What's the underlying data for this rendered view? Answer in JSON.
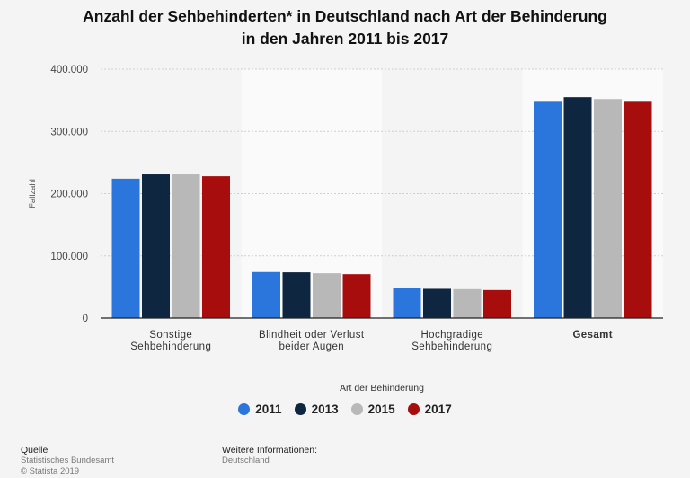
{
  "title_line1": "Anzahl der Sehbehinderten* in Deutschland nach Art der Behinderung",
  "title_line2": "in den Jahren 2011 bis 2017",
  "chart_data": {
    "type": "bar",
    "title": "Anzahl der Sehbehinderten* in Deutschland nach Art der Behinderung in den Jahren 2011 bis 2017",
    "xlabel": "Art der Behinderung",
    "ylabel": "Fallzahl",
    "ylim": [
      0,
      400000
    ],
    "yticks": [
      0,
      100000,
      200000,
      300000,
      400000
    ],
    "ytick_labels": [
      "0",
      "100.000",
      "200.000",
      "300.000",
      "400.000"
    ],
    "categories": [
      [
        "Sonstige",
        "Sehbehinderung"
      ],
      [
        "Blindheit oder Verlust",
        "beider Augen"
      ],
      [
        "Hochgradige",
        "Sehbehinderung"
      ],
      [
        "Gesamt"
      ]
    ],
    "series": [
      {
        "name": "2011",
        "color": "#2b76dc",
        "values": [
          224000,
          74000,
          48000,
          349000
        ]
      },
      {
        "name": "2013",
        "color": "#0f2640",
        "values": [
          231000,
          73500,
          47000,
          355000
        ]
      },
      {
        "name": "2015",
        "color": "#b8b8b8",
        "values": [
          231000,
          72000,
          46500,
          352000
        ]
      },
      {
        "name": "2017",
        "color": "#a80d0d",
        "values": [
          228000,
          70500,
          45000,
          349000
        ]
      }
    ],
    "legend_position": "bottom",
    "grid": true
  },
  "footer": {
    "source_label": "Quelle",
    "source_line1": "Statistisches Bundesamt",
    "source_line2": "© Statista 2019",
    "info_label": "Weitere Informationen:",
    "info_line1": "Deutschland"
  }
}
